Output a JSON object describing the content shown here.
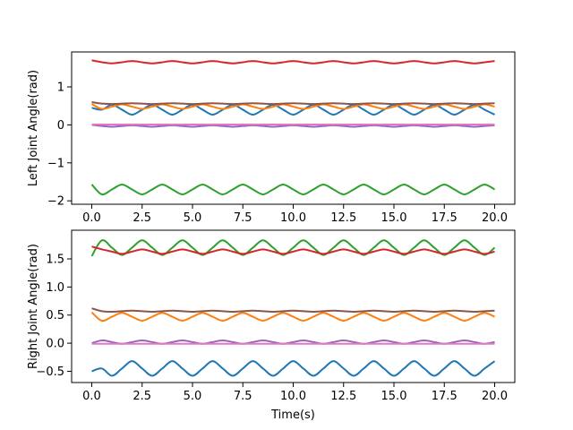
{
  "chart_data": [
    {
      "type": "line",
      "ylabel": "Left Joint Angle(rad)",
      "xlabel": "",
      "xlim": [
        -1,
        21
      ],
      "ylim": [
        -2.09,
        1.92
      ],
      "xticks": [
        0,
        2.5,
        5,
        7.5,
        10,
        12.5,
        15,
        17.5,
        20
      ],
      "xtick_labels": [
        "0.0",
        "2.5",
        "5.0",
        "7.5",
        "10.0",
        "12.5",
        "15.0",
        "17.5",
        "20.0"
      ],
      "yticks": [
        -2,
        -1,
        0,
        1
      ],
      "ytick_labels": [
        "−2",
        "−1",
        "0",
        "1"
      ],
      "grid": false,
      "x": [
        0,
        0.5,
        1,
        1.5,
        2,
        2.5,
        3,
        3.5,
        4,
        4.5,
        5,
        5.5,
        6,
        6.5,
        7,
        7.5,
        8,
        8.5,
        9,
        9.5,
        10,
        10.5,
        11,
        11.5,
        12,
        12.5,
        13,
        13.5,
        14,
        14.5,
        15,
        15.5,
        16,
        16.5,
        17,
        17.5,
        18,
        18.5,
        19,
        19.5,
        20
      ],
      "series": [
        {
          "color": "#1f77b4",
          "values": [
            0.45,
            0.4,
            0.53,
            0.4,
            0.27,
            0.4,
            0.53,
            0.4,
            0.27,
            0.4,
            0.53,
            0.4,
            0.27,
            0.4,
            0.53,
            0.4,
            0.27,
            0.4,
            0.53,
            0.4,
            0.27,
            0.4,
            0.53,
            0.4,
            0.27,
            0.4,
            0.53,
            0.4,
            0.27,
            0.4,
            0.53,
            0.4,
            0.27,
            0.4,
            0.53,
            0.4,
            0.27,
            0.4,
            0.53,
            0.4,
            0.27
          ]
        },
        {
          "color": "#ff7f0e",
          "values": [
            0.55,
            0.42,
            0.48,
            0.54,
            0.48,
            0.42,
            0.48,
            0.54,
            0.48,
            0.42,
            0.48,
            0.54,
            0.48,
            0.42,
            0.48,
            0.54,
            0.48,
            0.42,
            0.48,
            0.54,
            0.48,
            0.42,
            0.48,
            0.54,
            0.48,
            0.42,
            0.48,
            0.54,
            0.48,
            0.42,
            0.48,
            0.54,
            0.48,
            0.42,
            0.48,
            0.54,
            0.48,
            0.42,
            0.48,
            0.54,
            0.48
          ]
        },
        {
          "color": "#2ca02c",
          "values": [
            -1.57,
            -1.83,
            -1.7,
            -1.57,
            -1.7,
            -1.83,
            -1.7,
            -1.57,
            -1.7,
            -1.83,
            -1.7,
            -1.57,
            -1.7,
            -1.83,
            -1.7,
            -1.57,
            -1.7,
            -1.83,
            -1.7,
            -1.57,
            -1.7,
            -1.83,
            -1.7,
            -1.57,
            -1.7,
            -1.83,
            -1.7,
            -1.57,
            -1.7,
            -1.83,
            -1.7,
            -1.57,
            -1.7,
            -1.83,
            -1.7,
            -1.57,
            -1.7,
            -1.83,
            -1.7,
            -1.57,
            -1.7
          ]
        },
        {
          "color": "#d62728",
          "values": [
            1.7,
            1.65,
            1.62,
            1.65,
            1.68,
            1.65,
            1.62,
            1.65,
            1.68,
            1.65,
            1.62,
            1.65,
            1.68,
            1.65,
            1.62,
            1.65,
            1.68,
            1.65,
            1.62,
            1.65,
            1.68,
            1.65,
            1.62,
            1.65,
            1.68,
            1.65,
            1.62,
            1.65,
            1.68,
            1.65,
            1.62,
            1.65,
            1.68,
            1.65,
            1.62,
            1.65,
            1.68,
            1.65,
            1.62,
            1.65,
            1.68
          ]
        },
        {
          "color": "#9467bd",
          "values": [
            0.0,
            -0.03,
            -0.05,
            -0.03,
            -0.01,
            -0.03,
            -0.05,
            -0.03,
            -0.01,
            -0.03,
            -0.05,
            -0.03,
            -0.01,
            -0.03,
            -0.05,
            -0.03,
            -0.01,
            -0.03,
            -0.05,
            -0.03,
            -0.01,
            -0.03,
            -0.05,
            -0.03,
            -0.01,
            -0.03,
            -0.05,
            -0.03,
            -0.01,
            -0.03,
            -0.05,
            -0.03,
            -0.01,
            -0.03,
            -0.05,
            -0.03,
            -0.01,
            -0.03,
            -0.05,
            -0.03,
            -0.01
          ]
        },
        {
          "color": "#8c564b",
          "values": [
            0.6,
            0.56,
            0.55,
            0.56,
            0.57,
            0.56,
            0.55,
            0.56,
            0.57,
            0.56,
            0.55,
            0.56,
            0.57,
            0.56,
            0.55,
            0.56,
            0.57,
            0.56,
            0.55,
            0.56,
            0.57,
            0.56,
            0.55,
            0.56,
            0.57,
            0.56,
            0.55,
            0.56,
            0.57,
            0.56,
            0.55,
            0.56,
            0.57,
            0.56,
            0.55,
            0.56,
            0.57,
            0.56,
            0.55,
            0.56,
            0.57
          ]
        },
        {
          "color": "#e377c2",
          "values": [
            0.01,
            0.01,
            0.01,
            0.01,
            0.01,
            0.01,
            0.01,
            0.01,
            0.01,
            0.01,
            0.01,
            0.01,
            0.01,
            0.01,
            0.01,
            0.01,
            0.01,
            0.01,
            0.01,
            0.01,
            0.01,
            0.01,
            0.01,
            0.01,
            0.01,
            0.01,
            0.01,
            0.01,
            0.01,
            0.01,
            0.01,
            0.01,
            0.01,
            0.01,
            0.01,
            0.01,
            0.01,
            0.01,
            0.01,
            0.01,
            0.01
          ]
        }
      ]
    },
    {
      "type": "line",
      "ylabel": "Right Joint Angle(rad)",
      "xlabel": "Time(s)",
      "xlim": [
        -1,
        21
      ],
      "ylim": [
        -0.7,
        2.01
      ],
      "xticks": [
        0,
        2.5,
        5,
        7.5,
        10,
        12.5,
        15,
        17.5,
        20
      ],
      "xtick_labels": [
        "0.0",
        "2.5",
        "5.0",
        "7.5",
        "10.0",
        "12.5",
        "15.0",
        "17.5",
        "20.0"
      ],
      "yticks": [
        -0.5,
        0,
        0.5,
        1,
        1.5
      ],
      "ytick_labels": [
        "−0.5",
        "0.0",
        "0.5",
        "1.0",
        "1.5"
      ],
      "grid": false,
      "x": [
        0,
        0.5,
        1,
        1.5,
        2,
        2.5,
        3,
        3.5,
        4,
        4.5,
        5,
        5.5,
        6,
        6.5,
        7,
        7.5,
        8,
        8.5,
        9,
        9.5,
        10,
        10.5,
        11,
        11.5,
        12,
        12.5,
        13,
        13.5,
        14,
        14.5,
        15,
        15.5,
        16,
        16.5,
        17,
        17.5,
        18,
        18.5,
        19,
        19.5,
        20
      ],
      "series": [
        {
          "color": "#1f77b4",
          "values": [
            -0.5,
            -0.45,
            -0.58,
            -0.45,
            -0.32,
            -0.45,
            -0.58,
            -0.45,
            -0.32,
            -0.45,
            -0.58,
            -0.45,
            -0.32,
            -0.45,
            -0.58,
            -0.45,
            -0.32,
            -0.45,
            -0.58,
            -0.45,
            -0.32,
            -0.45,
            -0.58,
            -0.45,
            -0.32,
            -0.45,
            -0.58,
            -0.45,
            -0.32,
            -0.45,
            -0.58,
            -0.45,
            -0.32,
            -0.45,
            -0.58,
            -0.45,
            -0.32,
            -0.45,
            -0.58,
            -0.45,
            -0.32
          ]
        },
        {
          "color": "#ff7f0e",
          "values": [
            0.55,
            0.4,
            0.47,
            0.54,
            0.47,
            0.4,
            0.47,
            0.54,
            0.47,
            0.4,
            0.47,
            0.54,
            0.47,
            0.4,
            0.47,
            0.54,
            0.47,
            0.4,
            0.47,
            0.54,
            0.47,
            0.4,
            0.47,
            0.54,
            0.47,
            0.4,
            0.47,
            0.54,
            0.47,
            0.4,
            0.47,
            0.54,
            0.47,
            0.4,
            0.47,
            0.54,
            0.47,
            0.4,
            0.47,
            0.54,
            0.47
          ]
        },
        {
          "color": "#2ca02c",
          "values": [
            1.55,
            1.83,
            1.7,
            1.57,
            1.7,
            1.83,
            1.7,
            1.57,
            1.7,
            1.83,
            1.7,
            1.57,
            1.7,
            1.83,
            1.7,
            1.57,
            1.7,
            1.83,
            1.7,
            1.57,
            1.7,
            1.83,
            1.7,
            1.57,
            1.7,
            1.83,
            1.7,
            1.57,
            1.7,
            1.83,
            1.7,
            1.57,
            1.7,
            1.83,
            1.7,
            1.57,
            1.7,
            1.83,
            1.7,
            1.57,
            1.7
          ]
        },
        {
          "color": "#d62728",
          "values": [
            1.72,
            1.67,
            1.63,
            1.59,
            1.63,
            1.67,
            1.63,
            1.59,
            1.63,
            1.67,
            1.63,
            1.59,
            1.63,
            1.67,
            1.63,
            1.59,
            1.63,
            1.67,
            1.63,
            1.59,
            1.63,
            1.67,
            1.63,
            1.59,
            1.63,
            1.67,
            1.63,
            1.59,
            1.63,
            1.67,
            1.63,
            1.59,
            1.63,
            1.67,
            1.63,
            1.59,
            1.63,
            1.67,
            1.63,
            1.59,
            1.63
          ]
        },
        {
          "color": "#9467bd",
          "values": [
            0.0,
            0.05,
            0.02,
            -0.01,
            0.02,
            0.05,
            0.02,
            -0.01,
            0.02,
            0.05,
            0.02,
            -0.01,
            0.02,
            0.05,
            0.02,
            -0.01,
            0.02,
            0.05,
            0.02,
            -0.01,
            0.02,
            0.05,
            0.02,
            -0.01,
            0.02,
            0.05,
            0.02,
            -0.01,
            0.02,
            0.05,
            0.02,
            -0.01,
            0.02,
            0.05,
            0.02,
            -0.01,
            0.02,
            0.05,
            0.02,
            -0.01,
            0.02
          ]
        },
        {
          "color": "#8c564b",
          "values": [
            0.62,
            0.57,
            0.56,
            0.57,
            0.58,
            0.57,
            0.56,
            0.57,
            0.58,
            0.57,
            0.56,
            0.57,
            0.58,
            0.57,
            0.56,
            0.57,
            0.58,
            0.57,
            0.56,
            0.57,
            0.58,
            0.57,
            0.56,
            0.57,
            0.58,
            0.57,
            0.56,
            0.57,
            0.58,
            0.57,
            0.56,
            0.57,
            0.58,
            0.57,
            0.56,
            0.57,
            0.58,
            0.57,
            0.56,
            0.57,
            0.58
          ]
        },
        {
          "color": "#e377c2",
          "values": [
            -0.01,
            -0.01,
            -0.01,
            -0.01,
            -0.01,
            -0.01,
            -0.01,
            -0.01,
            -0.01,
            -0.01,
            -0.01,
            -0.01,
            -0.01,
            -0.01,
            -0.01,
            -0.01,
            -0.01,
            -0.01,
            -0.01,
            -0.01,
            -0.01,
            -0.01,
            -0.01,
            -0.01,
            -0.01,
            -0.01,
            -0.01,
            -0.01,
            -0.01,
            -0.01,
            -0.01,
            -0.01,
            -0.01,
            -0.01,
            -0.01,
            -0.01,
            -0.01,
            -0.01,
            -0.01,
            -0.01,
            -0.01
          ]
        }
      ]
    }
  ]
}
